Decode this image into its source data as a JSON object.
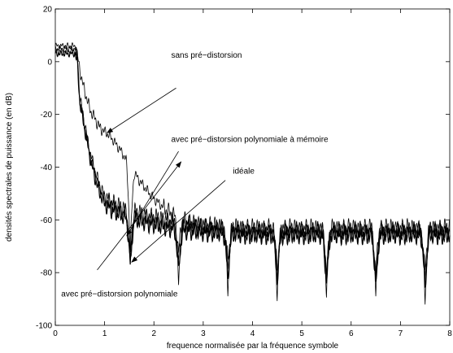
{
  "chart_data": {
    "type": "line",
    "title": "",
    "xlabel": "frequence normalisée par la fréquence symbole",
    "ylabel": "densités spectrales de puissance (en dB)",
    "xlim": [
      0,
      8
    ],
    "ylim": [
      -100,
      20
    ],
    "xticks": [
      0,
      1,
      2,
      3,
      4,
      5,
      6,
      7,
      8
    ],
    "yticks": [
      -100,
      -80,
      -60,
      -40,
      -20,
      0,
      20
    ],
    "grid": false,
    "legend": "none",
    "series": [
      {
        "key": "sans",
        "x": [
          0,
          0.4,
          0.45,
          0.55,
          0.7,
          0.9,
          1.1,
          1.3,
          1.5,
          1.7,
          2.0,
          2.3,
          2.7,
          3.0,
          3.4,
          3.8,
          4.2,
          4.6,
          5.0,
          5.5,
          6.0,
          6.5,
          7.0,
          7.5,
          8.0
        ],
        "y": [
          6,
          6,
          2,
          -8,
          -18,
          -25,
          -28,
          -33,
          -39,
          -45,
          -52,
          -57,
          -61,
          -63,
          -64,
          -65,
          -65,
          -65,
          -65,
          -65,
          -65,
          -65,
          -65,
          -65,
          -65
        ]
      },
      {
        "key": "poly_memoire",
        "x": [
          0,
          0.4,
          0.45,
          0.5,
          0.6,
          0.7,
          0.8,
          0.9,
          1.0,
          1.2,
          1.4,
          1.6,
          2.0,
          2.5,
          3.0,
          4.0,
          5.0,
          6.0,
          7.0,
          8.0
        ],
        "y": [
          4,
          4,
          0,
          -15,
          -25,
          -35,
          -42,
          -48,
          -52,
          -55,
          -57,
          -58,
          -60,
          -62,
          -63,
          -64,
          -64,
          -64,
          -64,
          -64
        ]
      },
      {
        "key": "ideale",
        "x": [
          0,
          0.4,
          0.45,
          0.5,
          0.6,
          0.7,
          0.8,
          0.9,
          1.0,
          1.2,
          1.4,
          1.6,
          2.0,
          2.5,
          3.0,
          4.0,
          5.0,
          6.0,
          7.0,
          8.0
        ],
        "y": [
          3,
          3,
          -1,
          -16,
          -26,
          -36,
          -44,
          -50,
          -54,
          -57,
          -59,
          -60,
          -62,
          -64,
          -65,
          -66,
          -66,
          -66,
          -66,
          -66
        ]
      },
      {
        "key": "poly",
        "x": [
          0,
          0.4,
          0.45,
          0.5,
          0.6,
          0.7,
          0.8,
          0.9,
          1.0,
          1.2,
          1.4,
          1.6,
          2.0,
          2.5,
          3.0,
          4.0,
          5.0,
          6.0,
          7.0,
          8.0
        ],
        "y": [
          5,
          5,
          1,
          -14,
          -24,
          -34,
          -41,
          -47,
          -51,
          -54,
          -56,
          -57,
          -59,
          -61,
          -62,
          -63,
          -63,
          -63,
          -63,
          -63
        ]
      }
    ],
    "notches": [
      {
        "x": 1.52,
        "y_min": [
          -72,
          -74,
          -77,
          -79
        ]
      },
      {
        "x": 2.5,
        "y_min": [
          -73,
          -76,
          -80,
          -84
        ]
      },
      {
        "x": 3.5,
        "y_min": [
          -76,
          -79,
          -83,
          -86
        ]
      },
      {
        "x": 4.5,
        "y_min": [
          -78,
          -81,
          -84,
          -88
        ]
      },
      {
        "x": 5.5,
        "y_min": [
          -79,
          -82,
          -85,
          -89
        ]
      },
      {
        "x": 6.5,
        "y_min": [
          -80,
          -83,
          -86,
          -89
        ]
      },
      {
        "x": 7.5,
        "y_min": [
          -80,
          -84,
          -87,
          -90
        ]
      }
    ],
    "annotations": [
      {
        "text": "sans pré−distorsion",
        "text_x": 2.35,
        "text_y": 1.5,
        "arrow_from": [
          2.45,
          -10
        ],
        "arrow_to": [
          1.05,
          -27
        ]
      },
      {
        "text": "avec pré−distorsion polynomiale à mémoire",
        "text_x": 2.35,
        "text_y": -30.5,
        "arrow_from": [
          2.5,
          -34
        ],
        "arrow_to": [
          1.45,
          -66
        ]
      },
      {
        "text": "idéale",
        "text_x": 3.6,
        "text_y": -42.5,
        "arrow_from": [
          3.45,
          -45
        ],
        "arrow_to": [
          1.55,
          -76
        ]
      },
      {
        "text": "avec pré−distorsion polynomiale",
        "text_x": 0.12,
        "text_y": -89,
        "arrow_from": [
          0.85,
          -79
        ],
        "arrow_to": [
          2.55,
          -38
        ]
      }
    ]
  }
}
